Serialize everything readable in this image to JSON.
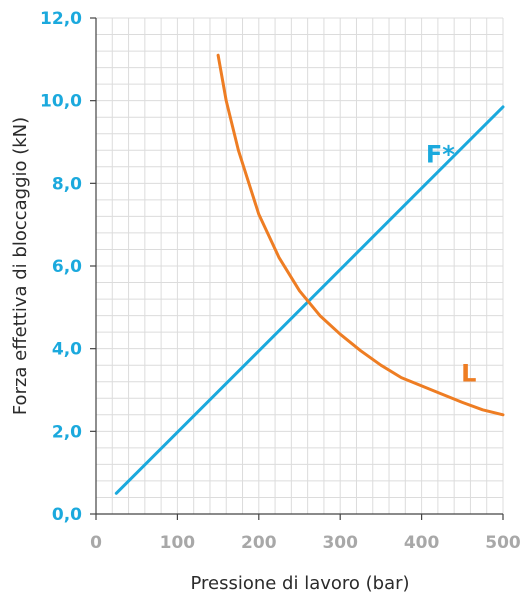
{
  "chart_data": {
    "type": "line",
    "xlabel": "Pressione di lavoro (bar)",
    "ylabel": "Forza effettiva di bloccaggio (kN)",
    "xlim": [
      0,
      500
    ],
    "ylim": [
      0,
      12
    ],
    "x_ticks": [
      0,
      100,
      200,
      300,
      400,
      500
    ],
    "x_tick_labels": [
      "0",
      "100",
      "200",
      "300",
      "400",
      "500"
    ],
    "y_ticks": [
      0,
      2,
      4,
      6,
      8,
      10,
      12
    ],
    "y_tick_labels": [
      "0,0",
      "2,0",
      "4,0",
      "6,0",
      "8,0",
      "10,0",
      "12,0"
    ],
    "grid": true,
    "grid_minor_step_x": 20,
    "grid_minor_step_y": 0.4,
    "series": [
      {
        "name": "F*",
        "color": "#1ba9dd",
        "points": [
          [
            25,
            0.5
          ],
          [
            500,
            9.85
          ]
        ]
      },
      {
        "name": "L",
        "color": "#ee7d23",
        "points": [
          [
            150,
            11.1
          ],
          [
            160,
            10.0
          ],
          [
            175,
            8.8
          ],
          [
            200,
            7.25
          ],
          [
            225,
            6.2
          ],
          [
            250,
            5.4
          ],
          [
            275,
            4.8
          ],
          [
            300,
            4.35
          ],
          [
            325,
            3.95
          ],
          [
            350,
            3.6
          ],
          [
            375,
            3.3
          ],
          [
            400,
            3.1
          ],
          [
            425,
            2.9
          ],
          [
            450,
            2.7
          ],
          [
            475,
            2.52
          ],
          [
            500,
            2.4
          ]
        ]
      }
    ],
    "colors": {
      "tick_text": "#1ba9dd",
      "x_tick_text": "#a8a8a8",
      "grid": "#dcdcdc",
      "axis": "#444444"
    }
  }
}
